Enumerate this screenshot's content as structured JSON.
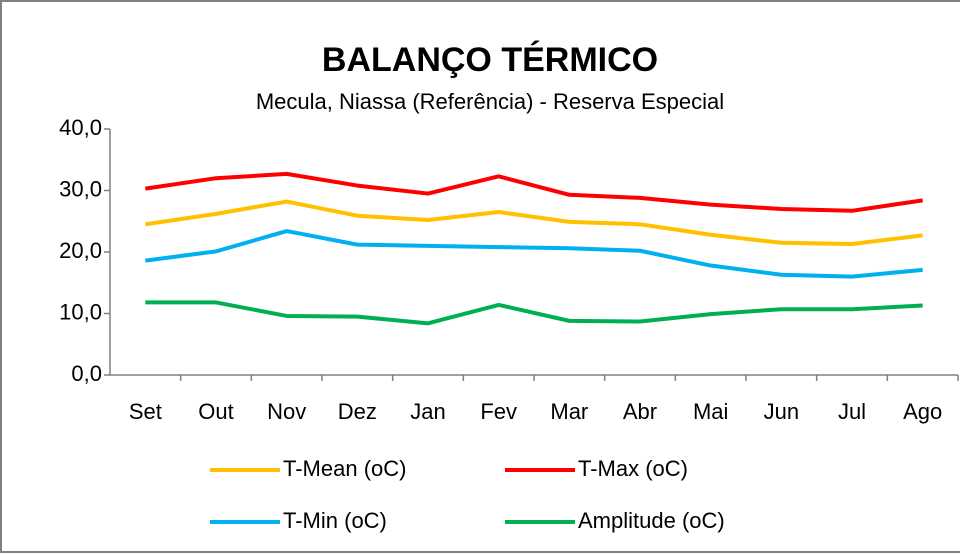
{
  "chart_data": {
    "type": "line",
    "title": "BALANÇO TÉRMICO",
    "subtitle": "Mecula, Niassa (Referência) - Reserva Especial",
    "categories": [
      "Set",
      "Out",
      "Nov",
      "Dez",
      "Jan",
      "Fev",
      "Mar",
      "Abr",
      "Mai",
      "Jun",
      "Jul",
      "Ago"
    ],
    "series": [
      {
        "name": "T-Mean (oC)",
        "color": "#ffc000",
        "values": [
          24.5,
          26.2,
          28.2,
          25.9,
          25.2,
          26.5,
          24.9,
          24.5,
          22.8,
          21.5,
          21.3,
          22.7
        ]
      },
      {
        "name": "T-Max (oC)",
        "color": "#ff0000",
        "values": [
          30.3,
          32.0,
          32.7,
          30.8,
          29.5,
          32.3,
          29.3,
          28.8,
          27.7,
          27.0,
          26.7,
          28.4
        ]
      },
      {
        "name": "T-Min (oC)",
        "color": "#00b0f0",
        "values": [
          18.6,
          20.1,
          23.4,
          21.2,
          21.0,
          20.8,
          20.6,
          20.2,
          17.8,
          16.3,
          16.0,
          17.1
        ]
      },
      {
        "name": "Amplitude (oC)",
        "color": "#00b050",
        "values": [
          11.8,
          11.8,
          9.6,
          9.5,
          8.4,
          11.4,
          8.8,
          8.7,
          9.9,
          10.7,
          10.7,
          11.3
        ]
      }
    ],
    "ylim": [
      0,
      40
    ],
    "yticks": [
      {
        "value": 0,
        "label": "0,0"
      },
      {
        "value": 10,
        "label": "10,0"
      },
      {
        "value": 20,
        "label": "20,0"
      },
      {
        "value": 30,
        "label": "30,0"
      },
      {
        "value": 40,
        "label": "40,0"
      }
    ],
    "grid": false
  }
}
